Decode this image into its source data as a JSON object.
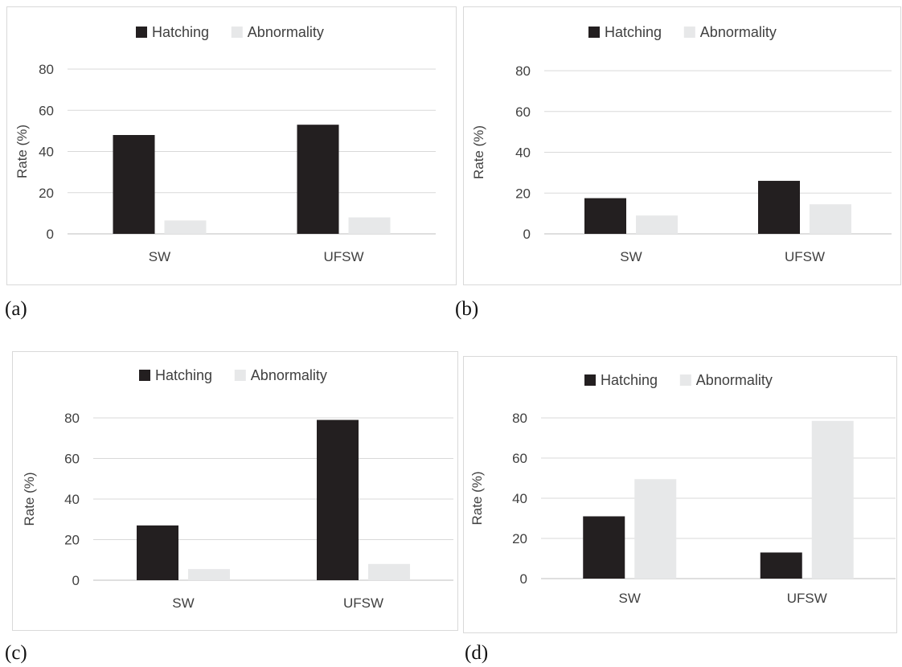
{
  "colors": {
    "hatching": "#231f20",
    "abnormality": "#e7e8e9",
    "gridline": "#d9d9d9",
    "axis": "#bfbfbf",
    "text": "#404040"
  },
  "panel_labels": [
    "(a)",
    "(b)",
    "(c)",
    "(d)"
  ],
  "chart_data": [
    {
      "type": "bar",
      "panel": "(a)",
      "categories": [
        "SW",
        "UFSW"
      ],
      "series": [
        {
          "name": "Hatching",
          "values": [
            48,
            53
          ]
        },
        {
          "name": "Abnormality",
          "values": [
            6.5,
            8
          ]
        }
      ],
      "xlabel": "",
      "ylabel": "Rate (%)",
      "ylim": [
        0,
        80
      ],
      "yticks": [
        0,
        20,
        40,
        60,
        80
      ],
      "grid": true,
      "legend": "top-center"
    },
    {
      "type": "bar",
      "panel": "(b)",
      "categories": [
        "SW",
        "UFSW"
      ],
      "series": [
        {
          "name": "Hatching",
          "values": [
            17.5,
            26
          ]
        },
        {
          "name": "Abnormality",
          "values": [
            9,
            14.5
          ]
        }
      ],
      "xlabel": "",
      "ylabel": "Rate (%)",
      "ylim": [
        0,
        80
      ],
      "yticks": [
        0,
        20,
        40,
        60,
        80
      ],
      "grid": true,
      "legend": "top-center"
    },
    {
      "type": "bar",
      "panel": "(c)",
      "categories": [
        "SW",
        "UFSW"
      ],
      "series": [
        {
          "name": "Hatching",
          "values": [
            27,
            79
          ]
        },
        {
          "name": "Abnormality",
          "values": [
            5.5,
            8
          ]
        }
      ],
      "xlabel": "",
      "ylabel": "Rate (%)",
      "ylim": [
        0,
        80
      ],
      "yticks": [
        0,
        20,
        40,
        60,
        80
      ],
      "grid": true,
      "legend": "top-center"
    },
    {
      "type": "bar",
      "panel": "(d)",
      "categories": [
        "SW",
        "UFSW"
      ],
      "series": [
        {
          "name": "Hatching",
          "values": [
            31,
            13
          ]
        },
        {
          "name": "Abnormality",
          "values": [
            49.5,
            78.5
          ]
        }
      ],
      "xlabel": "",
      "ylabel": "Rate (%)",
      "ylim": [
        0,
        80
      ],
      "yticks": [
        0,
        20,
        40,
        60,
        80
      ],
      "grid": true,
      "legend": "top-center"
    }
  ]
}
